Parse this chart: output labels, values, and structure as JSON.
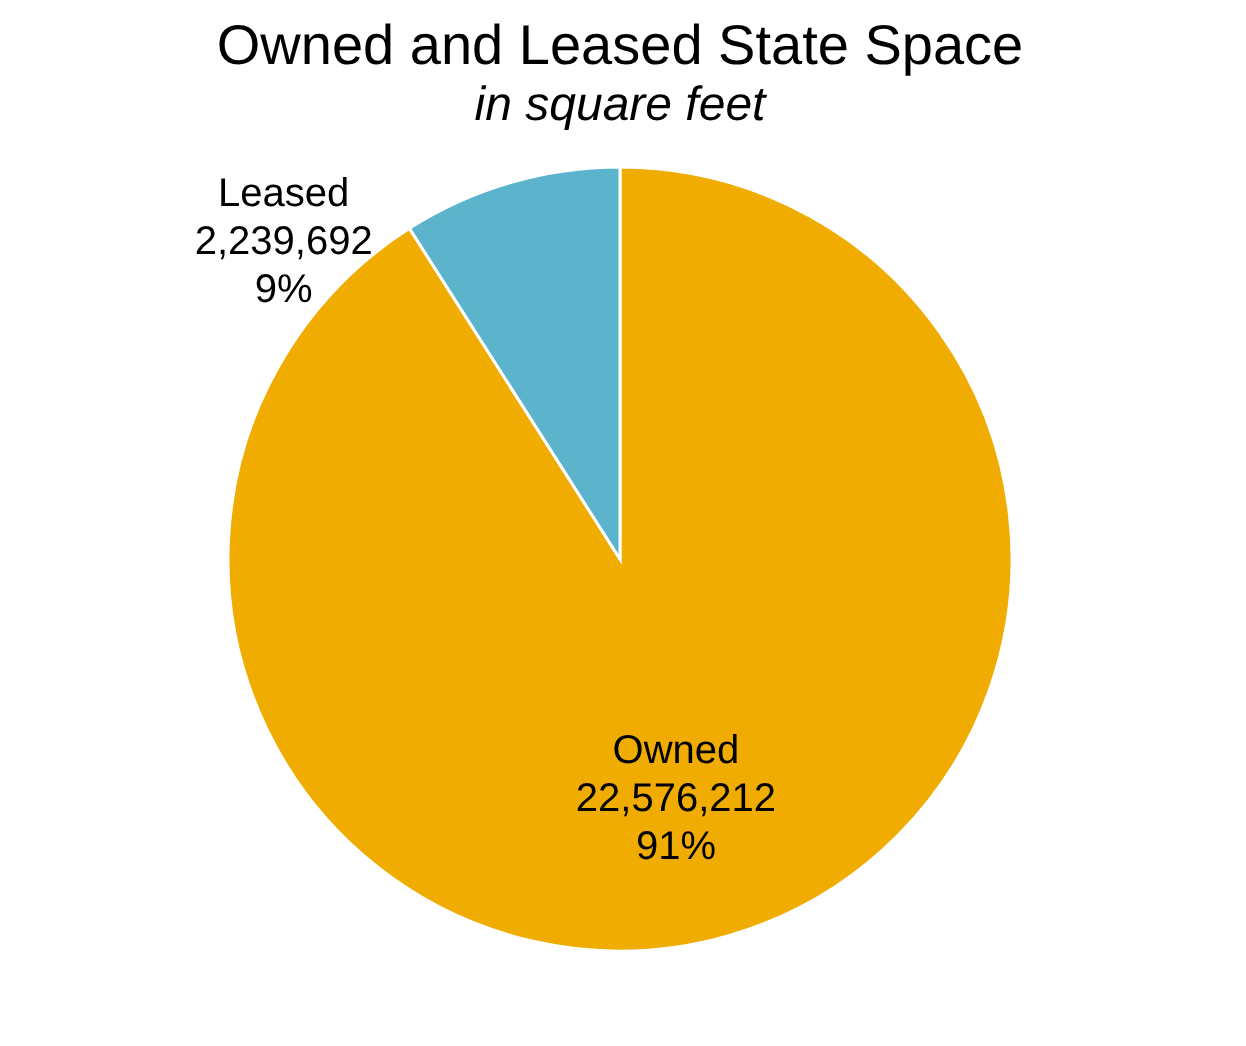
{
  "chart_data": {
    "type": "pie",
    "title": "Owned and Leased State Space",
    "subtitle": "in square feet",
    "categories": [
      "Owned",
      "Leased"
    ],
    "values": [
      22576212,
      2239692
    ],
    "colors": [
      "#f0ac00",
      "#5bb3cc"
    ],
    "value_labels": [
      "22,576,212\n91%",
      "2,239,692\n9%"
    ],
    "legend": false
  }
}
